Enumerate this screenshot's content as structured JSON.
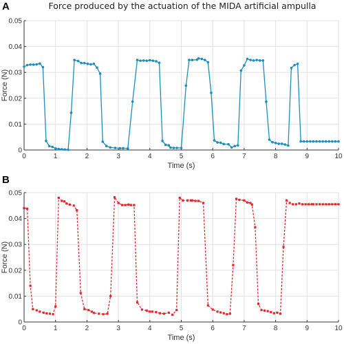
{
  "chart_data": [
    {
      "panel_label": "A",
      "type": "line",
      "title": "Force produced by the actuation of the MIDA  artificial ampulla",
      "xlabel": "Time (s)",
      "ylabel": "Force (N)",
      "xlim": [
        0,
        10
      ],
      "ylim": [
        0,
        0.05
      ],
      "x_ticks": [
        0,
        1,
        2,
        3,
        4,
        5,
        6,
        7,
        8,
        9,
        10
      ],
      "x_tick_labels": [
        "0",
        "1",
        "2",
        "3",
        "4",
        "5",
        "6",
        "7",
        "8",
        "9",
        "10"
      ],
      "y_ticks": [
        0,
        0.01,
        0.02,
        0.03,
        0.04,
        0.05
      ],
      "y_tick_labels": [
        "0",
        "0.01",
        "0.02",
        "0.03",
        "0.04",
        "0.05"
      ],
      "grid": true,
      "line_style": "solid",
      "color": "#1a8fbf",
      "series": [
        {
          "x": [
            0.0,
            0.1,
            0.2,
            0.3,
            0.4,
            0.5,
            0.6,
            0.7,
            0.8,
            0.9,
            1.0,
            1.1,
            1.2,
            1.3,
            1.4,
            1.5,
            1.6,
            1.72,
            1.82,
            1.92,
            2.02,
            2.12,
            2.22,
            2.32,
            2.42,
            2.5,
            2.62,
            2.74,
            2.9,
            3.05,
            3.15,
            3.3,
            3.45,
            3.6,
            3.7,
            3.8,
            3.9,
            4.0,
            4.1,
            4.2,
            4.3,
            4.4,
            4.5,
            4.6,
            4.66,
            4.76,
            4.86,
            5.0,
            5.15,
            5.25,
            5.35,
            5.5,
            5.55,
            5.65,
            5.75,
            5.85,
            5.95,
            6.05,
            6.15,
            6.25,
            6.35,
            6.5,
            6.6,
            6.7,
            6.8,
            6.9,
            7.0,
            7.1,
            7.2,
            7.3,
            7.4,
            7.5,
            7.6,
            7.7,
            7.8,
            7.9,
            8.0,
            8.1,
            8.2,
            8.3,
            8.4,
            8.5,
            8.6,
            8.7,
            8.8,
            8.9,
            9.0,
            9.1,
            9.2,
            9.3,
            9.4,
            9.5,
            9.6,
            9.7,
            9.8,
            9.9,
            10.0
          ],
          "y": [
            0.0322,
            0.0328,
            0.033,
            0.033,
            0.0331,
            0.0334,
            0.032,
            0.0035,
            0.0015,
            0.0012,
            0.0006,
            0.0004,
            0.0003,
            0.0002,
            0.0001,
            0.0144,
            0.0348,
            0.0344,
            0.0336,
            0.0336,
            0.0333,
            0.0331,
            0.0333,
            0.0318,
            0.0295,
            0.0032,
            0.0015,
            0.001,
            0.0008,
            0.0007,
            0.0007,
            0.0006,
            0.0187,
            0.0348,
            0.0345,
            0.0346,
            0.0345,
            0.0347,
            0.0345,
            0.0343,
            0.0337,
            0.0035,
            0.002,
            0.0018,
            0.0009,
            0.0008,
            0.0008,
            0.0008,
            0.0249,
            0.0348,
            0.0348,
            0.0349,
            0.0354,
            0.0352,
            0.0348,
            0.0339,
            0.0221,
            0.0037,
            0.0029,
            0.0028,
            0.0023,
            0.0022,
            0.001,
            0.0015,
            0.0018,
            0.0307,
            0.0327,
            0.0352,
            0.0348,
            0.0346,
            0.0348,
            0.0346,
            0.0346,
            0.0187,
            0.004,
            0.003,
            0.0027,
            0.0024,
            0.0024,
            0.0021,
            0.0017,
            0.0317,
            0.0328,
            0.0333,
            0.0033,
            0.0033,
            0.0033,
            0.0033,
            0.0033,
            0.0033,
            0.0033,
            0.0033,
            0.0033,
            0.0033,
            0.0033,
            0.0033,
            0.0033
          ]
        }
      ]
    },
    {
      "panel_label": "B",
      "type": "line",
      "title": "",
      "xlabel": "Time (s)",
      "ylabel": "Force (N)",
      "xlim": [
        0,
        10
      ],
      "ylim": [
        0,
        0.05
      ],
      "x_ticks": [
        0,
        1,
        2,
        3,
        4,
        5,
        6,
        7,
        8,
        9,
        10
      ],
      "x_tick_labels": [
        "0",
        "1",
        "2",
        "3",
        "4",
        "5",
        "6",
        "7",
        "8",
        "9",
        "10"
      ],
      "y_ticks": [
        0,
        0.01,
        0.02,
        0.03,
        0.04,
        0.05
      ],
      "y_tick_labels": [
        "0",
        "0.01",
        "0.02",
        "0.03",
        "0.04",
        "0.05"
      ],
      "grid": true,
      "line_style": "dashed",
      "color": "#e0282c",
      "series": [
        {
          "x": [
            0.0,
            0.1,
            0.2,
            0.28,
            0.4,
            0.5,
            0.62,
            0.72,
            0.82,
            0.92,
            1.0,
            1.1,
            1.2,
            1.28,
            1.35,
            1.45,
            1.58,
            1.68,
            1.8,
            1.92,
            2.05,
            2.15,
            2.22,
            2.38,
            2.52,
            2.65,
            2.75,
            2.88,
            3.0,
            3.12,
            3.22,
            3.32,
            3.4,
            3.5,
            3.6,
            3.75,
            3.9,
            4.0,
            4.08,
            4.2,
            4.32,
            4.45,
            4.6,
            4.72,
            4.85,
            4.95,
            5.05,
            5.2,
            5.3,
            5.35,
            5.45,
            5.55,
            5.7,
            5.85,
            6.0,
            6.15,
            6.25,
            6.35,
            6.45,
            6.55,
            6.65,
            6.75,
            6.85,
            7.0,
            7.1,
            7.2,
            7.25,
            7.35,
            7.45,
            7.55,
            7.65,
            7.75,
            7.85,
            7.95,
            8.05,
            8.15,
            8.25,
            8.35,
            8.45,
            8.55,
            8.65,
            8.75,
            8.85,
            8.95,
            9.05,
            9.15,
            9.2,
            9.3,
            9.4,
            9.5,
            9.6,
            9.7,
            9.8,
            9.9,
            10.0
          ],
          "y": [
            0.044,
            0.0438,
            0.014,
            0.005,
            0.0045,
            0.004,
            0.0036,
            0.0033,
            0.0032,
            0.003,
            0.006,
            0.048,
            0.0468,
            0.0466,
            0.0458,
            0.0454,
            0.045,
            0.0432,
            0.0112,
            0.005,
            0.0046,
            0.004,
            0.0035,
            0.0032,
            0.003,
            0.0032,
            0.01,
            0.0482,
            0.046,
            0.0452,
            0.0452,
            0.0454,
            0.0452,
            0.0452,
            0.0076,
            0.0048,
            0.0044,
            0.004,
            0.004,
            0.0038,
            0.0034,
            0.0032,
            0.0036,
            0.0028,
            0.0046,
            0.048,
            0.047,
            0.047,
            0.047,
            0.047,
            0.0468,
            0.0468,
            0.046,
            0.0064,
            0.0048,
            0.004,
            0.0037,
            0.0034,
            0.003,
            0.0032,
            0.022,
            0.0476,
            0.0472,
            0.047,
            0.0462,
            0.046,
            0.0454,
            0.0366,
            0.007,
            0.0046,
            0.0044,
            0.0042,
            0.0038,
            0.0034,
            0.0036,
            0.0032,
            0.029,
            0.047,
            0.046,
            0.0455,
            0.0455,
            0.0458,
            0.0455,
            0.0455,
            0.0455,
            0.0455,
            0.0455,
            0.0455,
            0.0455,
            0.0455,
            0.0455,
            0.0455,
            0.0455,
            0.0455,
            0.0455
          ]
        }
      ]
    }
  ]
}
